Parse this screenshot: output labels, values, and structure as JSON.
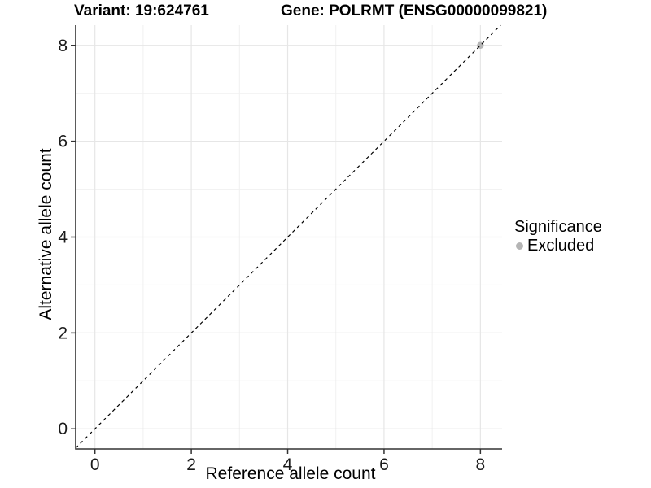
{
  "chart_data": {
    "type": "scatter",
    "titles": {
      "left": "Variant: 19:624761",
      "right": "Gene: POLRMT (ENSG00000099821)"
    },
    "xlabel": "Reference allele count",
    "ylabel": "Alternative allele count",
    "xlim": [
      -0.4,
      8.45
    ],
    "ylim": [
      -0.42,
      8.42
    ],
    "xticks": [
      0,
      2,
      4,
      6,
      8
    ],
    "yticks": [
      0,
      2,
      4,
      6,
      8
    ],
    "xminor": [
      1,
      3,
      5,
      7
    ],
    "yminor": [
      1,
      3,
      5,
      7
    ],
    "grid": {
      "major_color": "#e6e6e6",
      "minor_color": "#f0f0f0",
      "on": true
    },
    "axis": {
      "line_color": "#333333",
      "tick_color": "#333333",
      "text_color": "#1a1a1a"
    },
    "identity_line": {
      "slope": 1,
      "intercept": 0,
      "dash": "4 4",
      "color": "#000000"
    },
    "series": [
      {
        "name": "Excluded",
        "color": "#b5b5b5",
        "points": [
          {
            "x": 8,
            "y": 8
          }
        ]
      }
    ],
    "legend": {
      "title": "Significance",
      "position": "right",
      "entries": [
        {
          "label": "Excluded",
          "color": "#b5b5b5"
        }
      ]
    }
  }
}
